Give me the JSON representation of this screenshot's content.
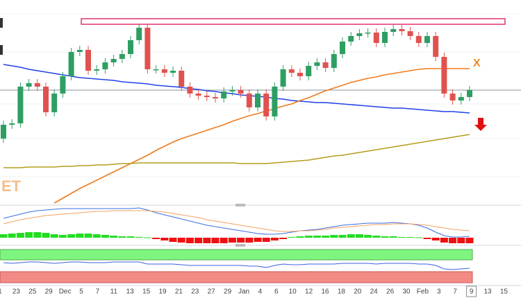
{
  "chart_data": {
    "type": "candlestick",
    "x_labels": [
      "1",
      "23",
      "25",
      "29",
      "Dec",
      "5",
      "7",
      "11",
      "13",
      "15",
      "19",
      "21",
      "23",
      "27",
      "29",
      "Jan",
      "4",
      "6",
      "10",
      "12",
      "16",
      "18",
      "20",
      "24",
      "26",
      "30",
      "Feb",
      "3",
      "7",
      "9",
      "13",
      "15"
    ],
    "ylim": [
      0,
      295
    ],
    "up_color": "#2f9e63",
    "down_color": "#e0524f",
    "candles": {
      "open": [
        95,
        115,
        117,
        170,
        175,
        170,
        133,
        160,
        185,
        220,
        223,
        193,
        195,
        205,
        210,
        217,
        237,
        255,
        195,
        195,
        190,
        193,
        170,
        160,
        157,
        155,
        153,
        163,
        165,
        160,
        140,
        160,
        127,
        170,
        195,
        190,
        185,
        200,
        205,
        197,
        217,
        235,
        243,
        247,
        248,
        233,
        249,
        253,
        250,
        243,
        233,
        243,
        213,
        160,
        150,
        155
      ],
      "high": [
        121,
        123,
        176,
        181,
        181,
        176,
        166,
        191,
        226,
        229,
        229,
        201,
        211,
        216,
        223,
        243,
        261,
        261,
        201,
        201,
        199,
        199,
        176,
        166,
        163,
        161,
        169,
        171,
        171,
        166,
        166,
        166,
        176,
        201,
        201,
        196,
        206,
        211,
        211,
        223,
        241,
        249,
        253,
        254,
        254,
        255,
        259,
        259,
        256,
        249,
        249,
        249,
        219,
        166,
        161,
        171
      ],
      "low": [
        89,
        109,
        111,
        164,
        164,
        127,
        127,
        154,
        179,
        214,
        187,
        187,
        189,
        199,
        204,
        211,
        231,
        189,
        189,
        184,
        184,
        164,
        154,
        151,
        149,
        147,
        147,
        157,
        154,
        134,
        134,
        121,
        121,
        164,
        184,
        179,
        179,
        194,
        191,
        191,
        211,
        229,
        237,
        241,
        227,
        227,
        243,
        244,
        237,
        227,
        227,
        207,
        154,
        144,
        144,
        149
      ],
      "close": [
        115,
        117,
        170,
        175,
        170,
        133,
        160,
        185,
        220,
        223,
        193,
        195,
        205,
        210,
        217,
        237,
        255,
        195,
        195,
        190,
        193,
        170,
        160,
        157,
        155,
        153,
        163,
        165,
        160,
        140,
        160,
        127,
        170,
        195,
        190,
        185,
        200,
        205,
        197,
        217,
        235,
        243,
        247,
        248,
        233,
        249,
        253,
        250,
        243,
        233,
        243,
        213,
        160,
        150,
        155,
        165
      ]
    },
    "lines": [
      {
        "color": "#2140e6",
        "values": [
          202,
          200,
          198,
          195,
          193,
          191,
          189,
          187,
          185,
          183,
          182,
          181,
          180,
          179,
          177,
          176,
          175,
          174,
          172,
          171,
          170,
          169,
          167,
          166,
          164,
          163,
          161,
          160,
          158,
          157,
          156,
          155,
          153,
          152,
          150,
          149,
          148,
          147,
          147,
          146,
          145,
          144,
          143,
          142,
          141,
          140,
          139,
          139,
          138,
          137,
          136,
          135,
          134,
          134,
          133,
          132
        ]
      },
      {
        "color": "#f07a1a",
        "values": [
          null,
          null,
          null,
          null,
          null,
          null,
          2,
          9,
          16,
          23,
          29,
          35,
          41,
          47,
          53,
          59,
          65,
          71,
          78,
          84,
          90,
          95,
          99,
          103,
          107,
          111,
          115,
          120,
          124,
          128,
          131,
          135,
          138,
          142,
          145,
          150,
          154,
          159,
          164,
          168,
          172,
          176,
          179,
          182,
          184,
          187,
          189,
          191,
          193,
          195,
          196,
          196,
          196,
          196,
          196,
          196
        ]
      },
      {
        "color": "#b39d1c",
        "values": [
          53,
          53,
          53,
          54,
          54,
          54,
          54,
          55,
          55,
          56,
          56,
          57,
          57,
          58,
          59,
          59,
          60,
          60,
          60,
          60,
          60,
          60,
          60,
          60,
          60,
          60,
          60,
          60,
          59,
          59,
          59,
          59,
          60,
          61,
          62,
          63,
          64,
          66,
          68,
          70,
          71,
          73,
          75,
          77,
          79,
          81,
          83,
          85,
          87,
          89,
          91,
          93,
          95,
          97,
          99,
          101
        ]
      }
    ],
    "resistance_zone": [
      260,
      268
    ],
    "resistance_color": "#e0306a",
    "annotations": [
      {
        "text": "X",
        "color": "#f08a2a"
      },
      {
        "text": "ET",
        "color": "#f5b070"
      }
    ],
    "macd": {
      "ylim": [
        -9,
        43
      ],
      "histogram": {
        "up_color": "#22dd22",
        "down_color": "#ee1111",
        "values": [
          5,
          6,
          7,
          8,
          8,
          7,
          5,
          4,
          5,
          6,
          6,
          5,
          4,
          3,
          2,
          2,
          1,
          0.5,
          -2,
          -4,
          -6,
          -7,
          -8,
          -8,
          -8,
          -8,
          -8,
          -7,
          -7,
          -7,
          -6,
          -6,
          -4,
          -2,
          1,
          2,
          3,
          3,
          3,
          4,
          4,
          5,
          5,
          4,
          3,
          2,
          2,
          1,
          1,
          0.5,
          -2,
          -4,
          -7,
          -8,
          -8,
          -8
        ]
      },
      "lines": [
        {
          "color": "#3a6fe0",
          "values": [
            28,
            31,
            34,
            37,
            39,
            40,
            41,
            42,
            42,
            42,
            42,
            42,
            42,
            42,
            42,
            42,
            43,
            40,
            36,
            33,
            30,
            27,
            24,
            21,
            18,
            16,
            14,
            12,
            10,
            8,
            6,
            5,
            5,
            6,
            8,
            10,
            11,
            12,
            14,
            16,
            18,
            19,
            20,
            21,
            21,
            21,
            22,
            21,
            20,
            18,
            14,
            8,
            3,
            1,
            1,
            2
          ]
        },
        {
          "color": "#f5a060",
          "values": [
            20,
            23,
            26,
            28,
            30,
            32,
            33,
            34,
            35,
            36,
            37,
            38,
            38,
            39,
            39,
            39,
            39,
            39,
            38,
            37,
            35,
            33,
            31,
            29,
            26,
            24,
            22,
            20,
            18,
            16,
            14,
            12,
            10,
            9,
            9,
            10,
            10,
            11,
            12,
            14,
            15,
            16,
            17,
            18,
            19,
            19,
            20,
            20,
            20,
            19,
            18,
            16,
            14,
            12,
            11,
            10
          ]
        }
      ]
    },
    "rsi": {
      "ylim": [
        0,
        52
      ],
      "color": "#3b5fe0",
      "values": [
        31,
        30,
        31,
        32,
        32,
        31,
        30,
        31,
        32,
        32,
        31,
        31,
        31,
        32,
        32,
        32,
        32,
        29,
        29,
        29,
        29,
        28,
        27,
        27,
        27,
        27,
        27,
        27,
        27,
        26,
        26,
        24,
        27,
        29,
        28,
        28,
        29,
        29,
        29,
        29,
        30,
        30,
        30,
        30,
        29,
        30,
        30,
        30,
        30,
        29,
        29,
        27,
        22,
        21,
        22,
        23
      ]
    }
  }
}
